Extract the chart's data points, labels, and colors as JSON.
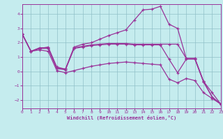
{
  "background_color": "#c5ecee",
  "grid_color": "#90c0c8",
  "line_color": "#993399",
  "xlim": [
    0,
    23
  ],
  "ylim": [
    -2.6,
    4.7
  ],
  "xticks": [
    0,
    1,
    2,
    3,
    4,
    5,
    6,
    7,
    8,
    9,
    10,
    11,
    12,
    13,
    14,
    15,
    16,
    17,
    18,
    19,
    20,
    21,
    22,
    23
  ],
  "yticks": [
    -2,
    -1,
    0,
    1,
    2,
    3,
    4
  ],
  "lines": [
    [
      2.6,
      1.4,
      1.6,
      1.7,
      0.3,
      0.15,
      1.7,
      1.9,
      2.0,
      2.25,
      2.5,
      2.7,
      2.9,
      3.6,
      4.3,
      4.35,
      4.55,
      3.3,
      3.0,
      0.9,
      0.9,
      -0.7,
      -1.5,
      -2.3
    ],
    [
      2.6,
      1.4,
      1.65,
      1.65,
      0.2,
      0.15,
      1.65,
      1.75,
      1.85,
      1.9,
      1.95,
      1.95,
      1.95,
      1.9,
      1.9,
      1.9,
      1.9,
      1.9,
      1.9,
      0.9,
      0.9,
      -0.7,
      -1.8,
      -2.3
    ],
    [
      2.6,
      1.4,
      1.6,
      1.6,
      0.2,
      0.1,
      1.6,
      1.7,
      1.8,
      1.85,
      1.9,
      1.9,
      1.9,
      1.85,
      1.85,
      1.85,
      1.85,
      0.85,
      -0.1,
      0.85,
      0.85,
      -0.75,
      -1.8,
      -2.3
    ],
    [
      2.6,
      1.4,
      1.5,
      1.4,
      0.05,
      -0.1,
      0.05,
      0.2,
      0.35,
      0.45,
      0.55,
      0.6,
      0.65,
      0.6,
      0.55,
      0.5,
      0.45,
      -0.55,
      -0.8,
      -0.5,
      -0.65,
      -1.5,
      -1.9,
      -2.3
    ]
  ],
  "xlabel": "Windchill (Refroidissement éolien,°C)"
}
